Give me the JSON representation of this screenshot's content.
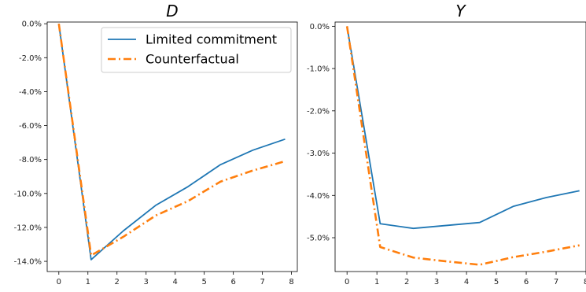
{
  "chart_data": [
    {
      "type": "line",
      "title": "D",
      "xlim": [
        -0.4,
        8.2
      ],
      "ylim": [
        -0.146,
        0.001
      ],
      "x_ticks": [
        0,
        1,
        2,
        3,
        4,
        5,
        6,
        7,
        8
      ],
      "y_ticks": [
        0.0,
        -0.02,
        -0.04,
        -0.06,
        -0.08,
        -0.1,
        -0.12,
        -0.14
      ],
      "y_tick_labels": [
        "0.0%",
        "-2.0%",
        "-4.0%",
        "-6.0%",
        "-8.0%",
        "-10.0%",
        "-12.0%",
        "-14.0%"
      ],
      "legend": {
        "placement": "top-right"
      },
      "series": [
        {
          "name": "Limited commitment",
          "color": "#1f77b4",
          "style": "solid",
          "x": [
            0.0,
            1.11,
            2.22,
            3.33,
            4.44,
            5.56,
            6.67,
            7.78
          ],
          "y": [
            0.0,
            -0.139,
            -0.122,
            -0.107,
            -0.096,
            -0.083,
            -0.0745,
            -0.068
          ]
        },
        {
          "name": "Counterfactual",
          "color": "#ff7f0e",
          "style": "dashdot",
          "x": [
            0.0,
            1.11,
            2.22,
            3.33,
            4.44,
            5.56,
            6.67,
            7.78
          ],
          "y": [
            0.0,
            -0.1365,
            -0.1255,
            -0.113,
            -0.1045,
            -0.093,
            -0.0865,
            -0.081
          ]
        }
      ]
    },
    {
      "type": "line",
      "title": "Y",
      "xlim": [
        -0.4,
        8.0
      ],
      "ylim": [
        -0.058,
        0.001
      ],
      "x_ticks": [
        0,
        1,
        2,
        3,
        4,
        5,
        6,
        7,
        8
      ],
      "y_ticks": [
        0.0,
        -0.01,
        -0.02,
        -0.03,
        -0.04,
        -0.05
      ],
      "y_tick_labels": [
        "0.0%",
        "-1.0%",
        "-2.0%",
        "-3.0%",
        "-4.0%",
        "-5.0%"
      ],
      "series": [
        {
          "name": "Limited commitment",
          "color": "#1f77b4",
          "style": "solid",
          "x": [
            0.0,
            1.11,
            2.22,
            3.33,
            4.44,
            5.56,
            6.67,
            7.78
          ],
          "y": [
            0.0,
            -0.0467,
            -0.0478,
            -0.0471,
            -0.0464,
            -0.0426,
            -0.0405,
            -0.0389
          ]
        },
        {
          "name": "Counterfactual",
          "color": "#ff7f0e",
          "style": "dashdot",
          "x": [
            0.0,
            1.11,
            2.22,
            3.33,
            4.44,
            5.56,
            6.67,
            7.78
          ],
          "y": [
            0.0,
            -0.0522,
            -0.0547,
            -0.0556,
            -0.0564,
            -0.0546,
            -0.0533,
            -0.0518
          ]
        }
      ]
    }
  ]
}
